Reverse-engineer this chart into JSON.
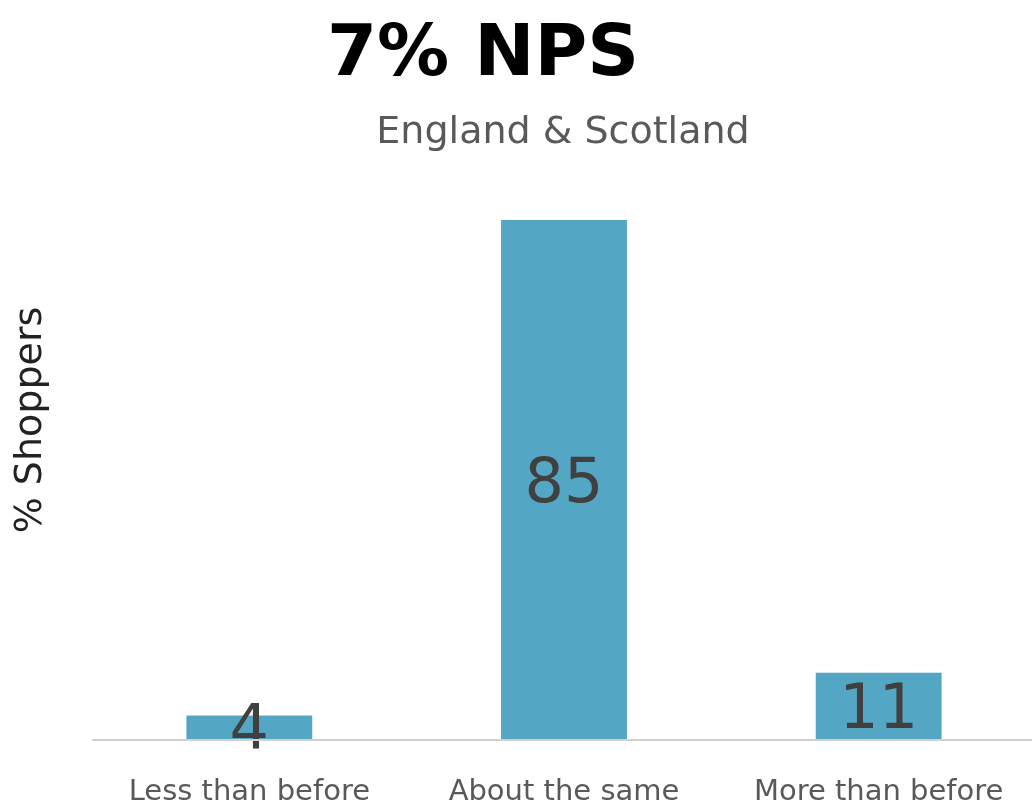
{
  "chart_data": {
    "type": "bar",
    "title": "7% NPS",
    "subtitle": "England & Scotland",
    "ylabel": "% Shoppers",
    "categories": [
      "Less than before",
      "About the same",
      "More than before"
    ],
    "values": [
      4,
      85,
      11
    ],
    "color": "#53a7c4",
    "data_labels": true
  }
}
